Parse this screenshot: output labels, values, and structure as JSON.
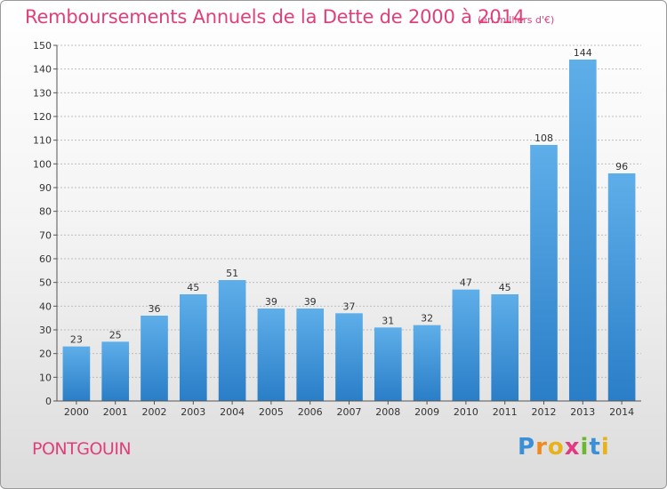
{
  "title": "Remboursements Annuels de la Dette de 2000 à 2014",
  "unit_note": "(en milliers d'€)",
  "commune": "PONTGOUIN",
  "brand": {
    "text": "Proxiti",
    "letters": [
      "P",
      "r",
      "o",
      "x",
      "i",
      "t",
      "i"
    ],
    "letter_colors": [
      "#3a8fd6",
      "#f08a1c",
      "#e8b21c",
      "#e23a80",
      "#6ab82e",
      "#3a8fd6",
      "#e8b21c"
    ]
  },
  "colors": {
    "title": "#e0407a",
    "bar_light": "#5eaee9",
    "bar_dark": "#2a7ec7",
    "grid": "#bdbdbd",
    "axis": "#555555"
  },
  "chart_data": {
    "type": "bar",
    "title": "Remboursements Annuels de la Dette de 2000 à 2014",
    "subtitle": "(en milliers d'€)",
    "categories": [
      "2000",
      "2001",
      "2002",
      "2003",
      "2004",
      "2005",
      "2006",
      "2007",
      "2008",
      "2009",
      "2010",
      "2011",
      "2012",
      "2013",
      "2014"
    ],
    "values": [
      23,
      25,
      36,
      45,
      51,
      39,
      39,
      37,
      31,
      32,
      47,
      45,
      108,
      144,
      96
    ],
    "ylim": [
      0,
      150
    ],
    "yticks": [
      0,
      10,
      20,
      30,
      40,
      50,
      60,
      70,
      80,
      90,
      100,
      110,
      120,
      130,
      140,
      150
    ],
    "grid": true,
    "data_labels": true
  }
}
